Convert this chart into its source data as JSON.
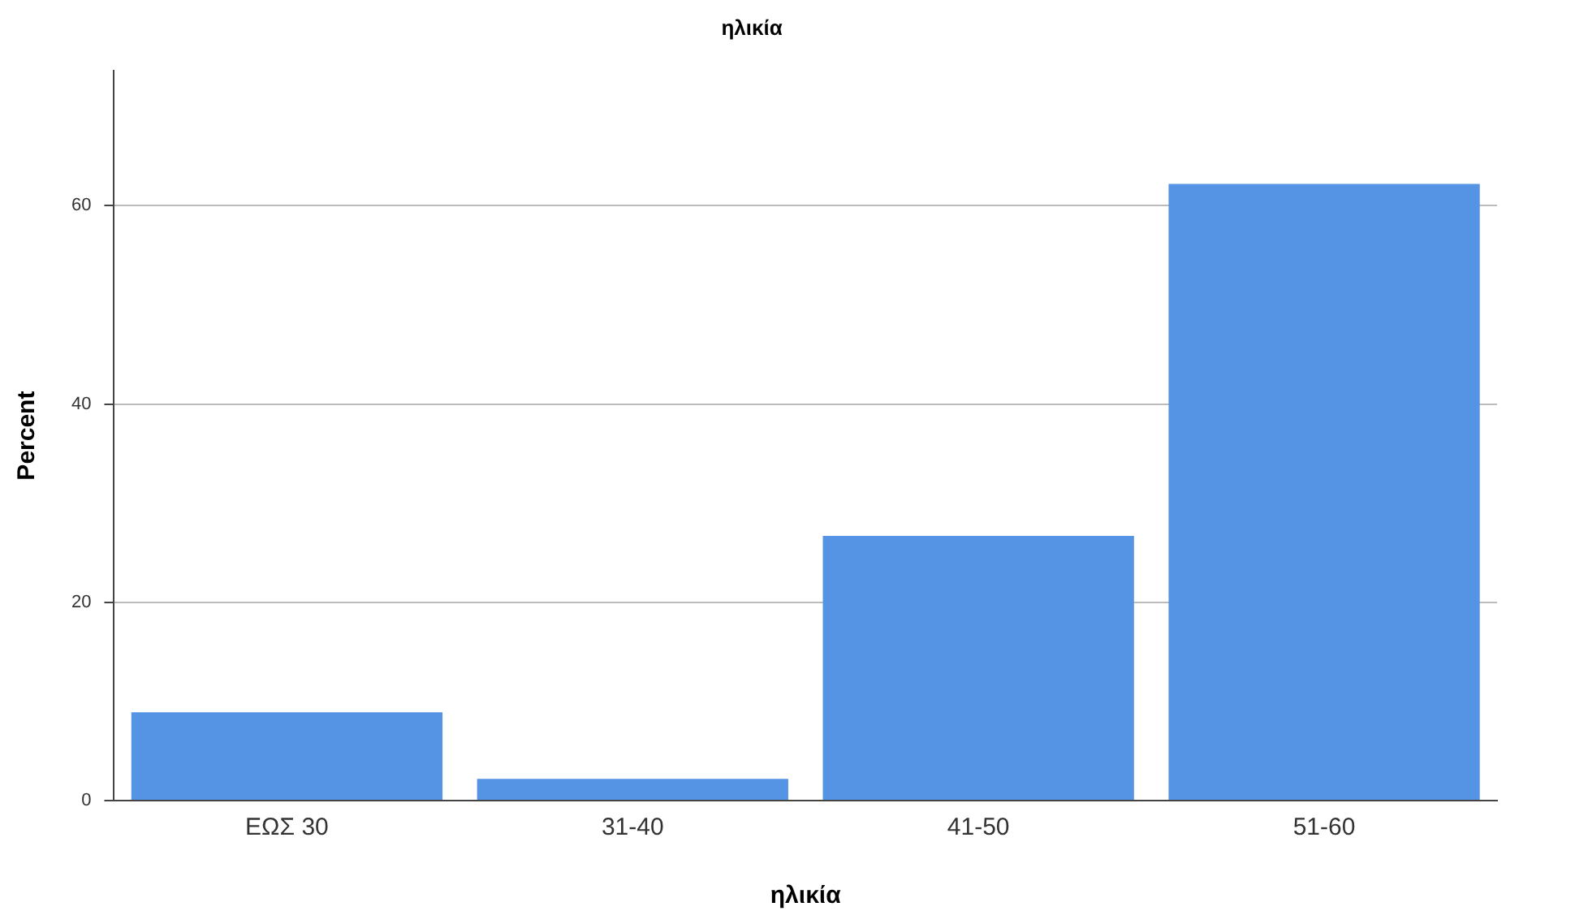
{
  "chart_data": {
    "type": "bar",
    "title": "ηλικία",
    "xlabel": "ηλικία",
    "ylabel": "Percent",
    "categories": [
      "ΕΩΣ 30",
      "31-40",
      "41-50",
      "51-60"
    ],
    "values": [
      8.9,
      2.2,
      26.7,
      62.2
    ],
    "color": "#5594e4",
    "ylim": [
      0,
      73.6
    ],
    "yticks": [
      0,
      20,
      40,
      60
    ],
    "grid": "y",
    "legend": false
  }
}
